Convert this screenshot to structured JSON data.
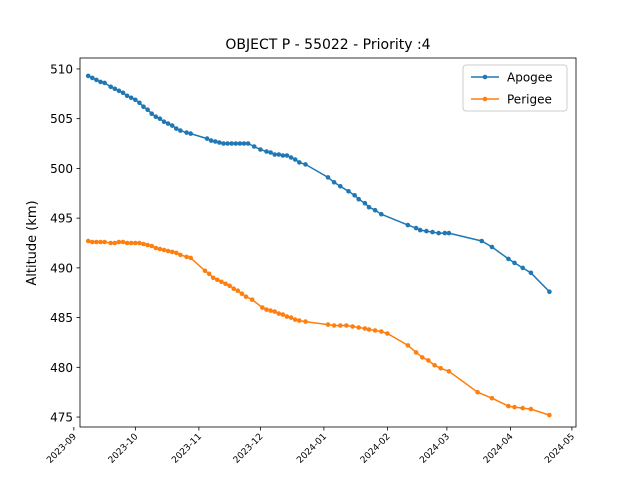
{
  "chart_data": {
    "type": "line",
    "title": "OBJECT P - 55022 - Priority :4",
    "xlabel": "",
    "ylabel": "Altitude (km)",
    "x_ticks": [
      "2023-09",
      "2023-10",
      "2023-11",
      "2023-12",
      "2024-01",
      "2024-02",
      "2024-03",
      "2024-04",
      "2024-05"
    ],
    "y_ticks": [
      475,
      480,
      485,
      490,
      495,
      500,
      505,
      510
    ],
    "xlim": [
      "2023-09-04",
      "2024-05-03"
    ],
    "ylim": [
      474.0,
      511.1
    ],
    "grid": false,
    "legend": "top-right",
    "series": [
      {
        "name": "Apogee",
        "color": "#1f77b4",
        "points": [
          [
            "2023-09-08",
            509.3
          ],
          [
            "2023-09-10",
            509.1
          ],
          [
            "2023-09-12",
            508.9
          ],
          [
            "2023-09-14",
            508.7
          ],
          [
            "2023-09-16",
            508.6
          ],
          [
            "2023-09-19",
            508.2
          ],
          [
            "2023-09-21",
            508.0
          ],
          [
            "2023-09-23",
            507.8
          ],
          [
            "2023-09-25",
            507.6
          ],
          [
            "2023-09-27",
            507.3
          ],
          [
            "2023-09-29",
            507.1
          ],
          [
            "2023-10-01",
            506.9
          ],
          [
            "2023-10-03",
            506.6
          ],
          [
            "2023-10-05",
            506.2
          ],
          [
            "2023-10-07",
            505.9
          ],
          [
            "2023-10-09",
            505.5
          ],
          [
            "2023-10-11",
            505.2
          ],
          [
            "2023-10-13",
            505.0
          ],
          [
            "2023-10-15",
            504.7
          ],
          [
            "2023-10-17",
            504.5
          ],
          [
            "2023-10-19",
            504.3
          ],
          [
            "2023-10-21",
            504.0
          ],
          [
            "2023-10-23",
            503.8
          ],
          [
            "2023-10-26",
            503.6
          ],
          [
            "2023-10-28",
            503.5
          ],
          [
            "2023-11-05",
            503.0
          ],
          [
            "2023-11-07",
            502.8
          ],
          [
            "2023-11-09",
            502.7
          ],
          [
            "2023-11-11",
            502.6
          ],
          [
            "2023-11-13",
            502.5
          ],
          [
            "2023-11-15",
            502.5
          ],
          [
            "2023-11-17",
            502.5
          ],
          [
            "2023-11-19",
            502.5
          ],
          [
            "2023-11-21",
            502.5
          ],
          [
            "2023-11-23",
            502.5
          ],
          [
            "2023-11-25",
            502.5
          ],
          [
            "2023-11-28",
            502.2
          ],
          [
            "2023-12-01",
            501.9
          ],
          [
            "2023-12-04",
            501.7
          ],
          [
            "2023-12-06",
            501.6
          ],
          [
            "2023-12-08",
            501.4
          ],
          [
            "2023-12-10",
            501.4
          ],
          [
            "2023-12-12",
            501.3
          ],
          [
            "2023-12-14",
            501.3
          ],
          [
            "2023-12-16",
            501.1
          ],
          [
            "2023-12-18",
            500.9
          ],
          [
            "2023-12-20",
            500.6
          ],
          [
            "2023-12-23",
            500.4
          ],
          [
            "2024-01-03",
            499.1
          ],
          [
            "2024-01-06",
            498.6
          ],
          [
            "2024-01-09",
            498.2
          ],
          [
            "2024-01-13",
            497.7
          ],
          [
            "2024-01-16",
            497.3
          ],
          [
            "2024-01-18",
            496.9
          ],
          [
            "2024-01-21",
            496.5
          ],
          [
            "2024-01-23",
            496.1
          ],
          [
            "2024-01-26",
            495.8
          ],
          [
            "2024-01-29",
            495.4
          ],
          [
            "2024-02-11",
            494.3
          ],
          [
            "2024-02-15",
            494.0
          ],
          [
            "2024-02-17",
            493.8
          ],
          [
            "2024-02-20",
            493.7
          ],
          [
            "2024-02-23",
            493.6
          ],
          [
            "2024-02-26",
            493.5
          ],
          [
            "2024-02-29",
            493.5
          ],
          [
            "2024-03-02",
            493.5
          ],
          [
            "2024-03-18",
            492.7
          ],
          [
            "2024-03-23",
            492.1
          ],
          [
            "2024-03-31",
            490.9
          ],
          [
            "2024-04-03",
            490.5
          ],
          [
            "2024-04-07",
            490.0
          ],
          [
            "2024-04-11",
            489.5
          ],
          [
            "2024-04-20",
            487.6
          ]
        ]
      },
      {
        "name": "Perigee",
        "color": "#ff7f0e",
        "points": [
          [
            "2023-09-08",
            492.7
          ],
          [
            "2023-09-10",
            492.6
          ],
          [
            "2023-09-12",
            492.6
          ],
          [
            "2023-09-14",
            492.6
          ],
          [
            "2023-09-16",
            492.6
          ],
          [
            "2023-09-19",
            492.5
          ],
          [
            "2023-09-21",
            492.5
          ],
          [
            "2023-09-23",
            492.6
          ],
          [
            "2023-09-25",
            492.6
          ],
          [
            "2023-09-27",
            492.5
          ],
          [
            "2023-09-29",
            492.5
          ],
          [
            "2023-10-01",
            492.5
          ],
          [
            "2023-10-03",
            492.5
          ],
          [
            "2023-10-05",
            492.4
          ],
          [
            "2023-10-07",
            492.3
          ],
          [
            "2023-10-09",
            492.2
          ],
          [
            "2023-10-11",
            492.0
          ],
          [
            "2023-10-13",
            491.9
          ],
          [
            "2023-10-15",
            491.8
          ],
          [
            "2023-10-17",
            491.7
          ],
          [
            "2023-10-19",
            491.6
          ],
          [
            "2023-10-21",
            491.5
          ],
          [
            "2023-10-23",
            491.3
          ],
          [
            "2023-10-26",
            491.1
          ],
          [
            "2023-10-28",
            491.0
          ],
          [
            "2023-11-04",
            489.7
          ],
          [
            "2023-11-06",
            489.4
          ],
          [
            "2023-11-08",
            489.0
          ],
          [
            "2023-11-10",
            488.8
          ],
          [
            "2023-11-12",
            488.6
          ],
          [
            "2023-11-14",
            488.4
          ],
          [
            "2023-11-16",
            488.2
          ],
          [
            "2023-11-18",
            487.9
          ],
          [
            "2023-11-20",
            487.7
          ],
          [
            "2023-11-22",
            487.4
          ],
          [
            "2023-11-24",
            487.1
          ],
          [
            "2023-11-27",
            486.8
          ],
          [
            "2023-12-02",
            486.0
          ],
          [
            "2023-12-04",
            485.8
          ],
          [
            "2023-12-06",
            485.7
          ],
          [
            "2023-12-08",
            485.6
          ],
          [
            "2023-12-10",
            485.4
          ],
          [
            "2023-12-12",
            485.3
          ],
          [
            "2023-12-14",
            485.1
          ],
          [
            "2023-12-16",
            485.0
          ],
          [
            "2023-12-18",
            484.8
          ],
          [
            "2023-12-20",
            484.7
          ],
          [
            "2023-12-23",
            484.6
          ],
          [
            "2024-01-03",
            484.3
          ],
          [
            "2024-01-06",
            484.2
          ],
          [
            "2024-01-09",
            484.2
          ],
          [
            "2024-01-12",
            484.2
          ],
          [
            "2024-01-15",
            484.1
          ],
          [
            "2024-01-18",
            484.0
          ],
          [
            "2024-01-21",
            483.9
          ],
          [
            "2024-01-23",
            483.8
          ],
          [
            "2024-01-26",
            483.7
          ],
          [
            "2024-01-29",
            483.6
          ],
          [
            "2024-02-01",
            483.4
          ],
          [
            "2024-02-11",
            482.2
          ],
          [
            "2024-02-15",
            481.5
          ],
          [
            "2024-02-18",
            481.0
          ],
          [
            "2024-02-21",
            480.7
          ],
          [
            "2024-02-24",
            480.2
          ],
          [
            "2024-02-27",
            479.9
          ],
          [
            "2024-03-02",
            479.6
          ],
          [
            "2024-03-16",
            477.5
          ],
          [
            "2024-03-23",
            476.9
          ],
          [
            "2024-03-31",
            476.1
          ],
          [
            "2024-04-03",
            476.0
          ],
          [
            "2024-04-07",
            475.9
          ],
          [
            "2024-04-11",
            475.8
          ],
          [
            "2024-04-20",
            475.2
          ]
        ]
      }
    ]
  }
}
